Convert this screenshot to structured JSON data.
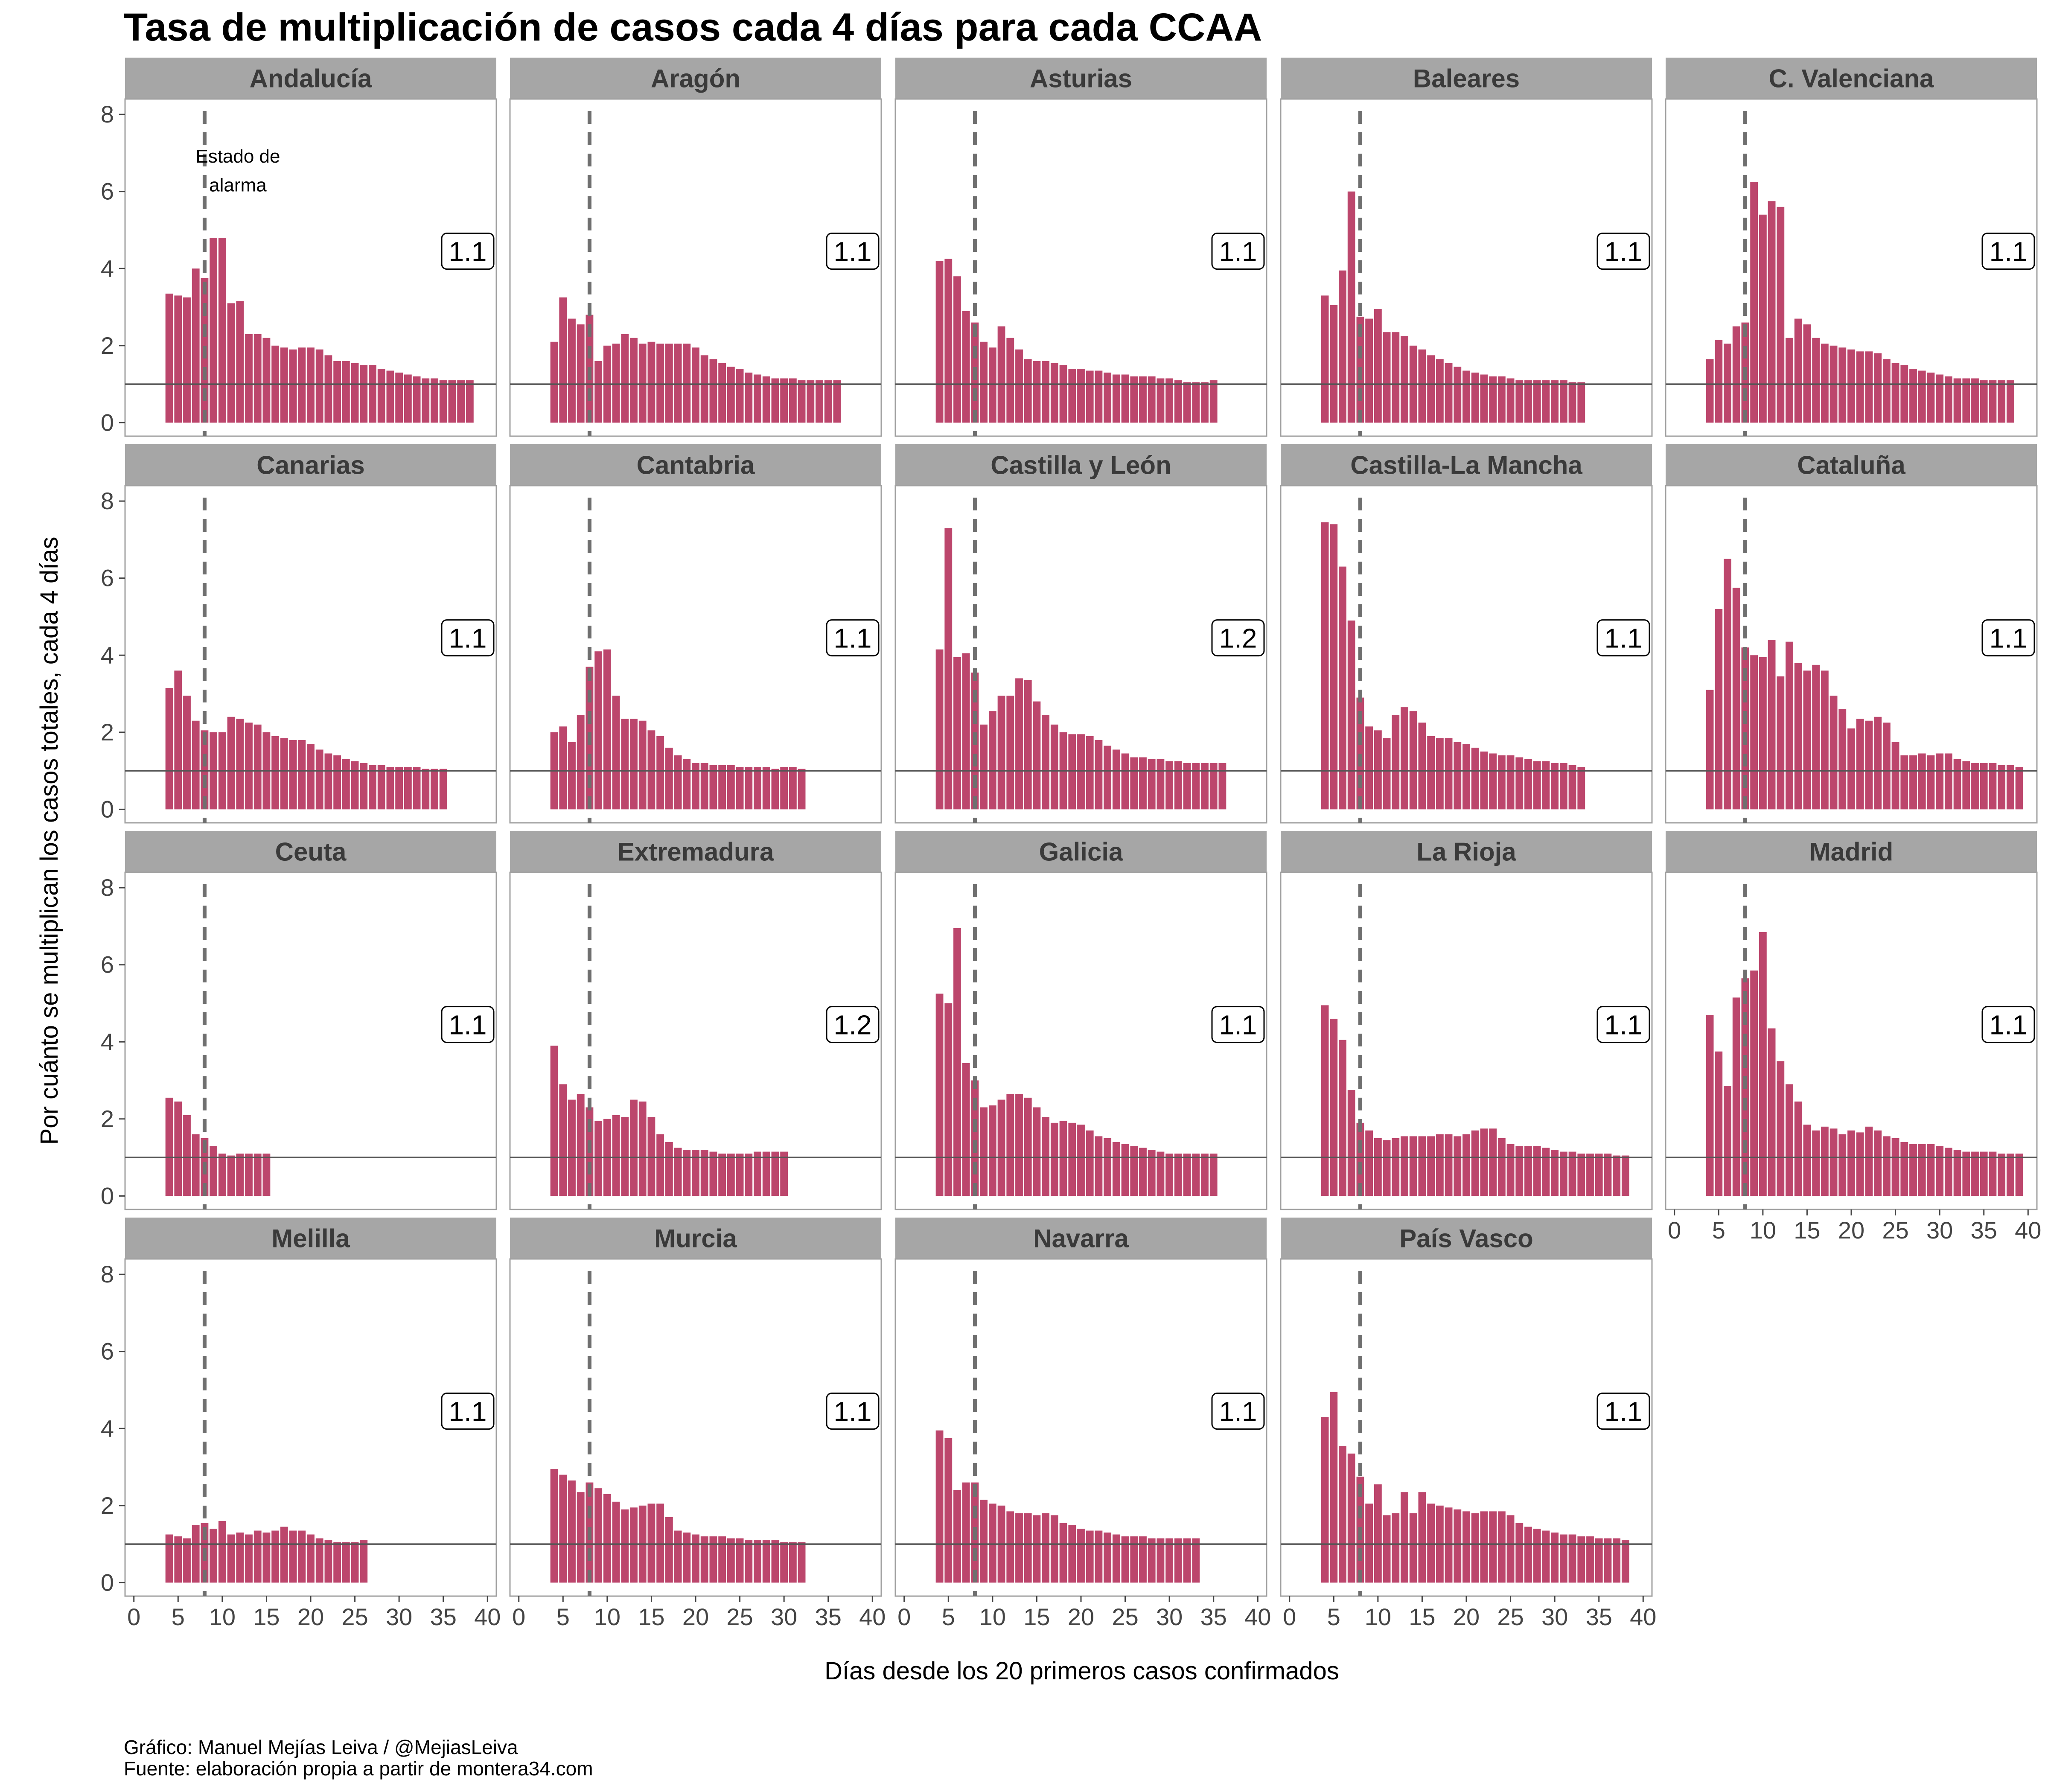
{
  "chart_data": {
    "type": "bar",
    "title": "Tasa de multiplicación de casos cada 4 días para cada CCAA",
    "xlabel": "Días desde los 20 primeros casos confirmados",
    "ylabel": "Por cuánto se multiplican los casos totales, cada 4 días",
    "xlim": [
      -1,
      41
    ],
    "ylim": [
      -0.35,
      8.4
    ],
    "x_ticks": [
      0,
      5,
      10,
      15,
      20,
      25,
      30,
      35,
      40
    ],
    "y_ticks": [
      0,
      2,
      4,
      6,
      8
    ],
    "reference_line_y": 1,
    "alarm_state_x": 8,
    "annotation": "Estado de alarma",
    "bar_color": "#b5325c",
    "strip_color": "#a6a6a6",
    "facets": [
      {
        "region": "Andalucía",
        "label": "1.1",
        "x_start": 4,
        "values": [
          3.35,
          3.3,
          3.25,
          4.0,
          3.75,
          4.8,
          4.8,
          3.1,
          3.15,
          2.3,
          2.3,
          2.2,
          2.0,
          1.95,
          1.9,
          1.95,
          1.95,
          1.9,
          1.75,
          1.6,
          1.6,
          1.55,
          1.5,
          1.5,
          1.4,
          1.35,
          1.3,
          1.25,
          1.2,
          1.15,
          1.15,
          1.1,
          1.1,
          1.1,
          1.1
        ]
      },
      {
        "region": "Aragón",
        "label": "1.1",
        "x_start": 4,
        "values": [
          2.1,
          3.25,
          2.7,
          2.55,
          2.8,
          1.6,
          2.0,
          2.05,
          2.3,
          2.2,
          2.05,
          2.1,
          2.05,
          2.05,
          2.05,
          2.05,
          1.95,
          1.75,
          1.65,
          1.55,
          1.45,
          1.4,
          1.3,
          1.25,
          1.2,
          1.15,
          1.15,
          1.15,
          1.1,
          1.1,
          1.1,
          1.1,
          1.1
        ]
      },
      {
        "region": "Asturias",
        "label": "1.1",
        "x_start": 4,
        "values": [
          4.2,
          4.25,
          3.8,
          2.9,
          2.6,
          2.1,
          1.95,
          2.5,
          2.2,
          1.9,
          1.65,
          1.6,
          1.6,
          1.55,
          1.5,
          1.4,
          1.4,
          1.35,
          1.35,
          1.3,
          1.25,
          1.25,
          1.2,
          1.2,
          1.2,
          1.15,
          1.15,
          1.1,
          1.05,
          1.05,
          1.05,
          1.1
        ]
      },
      {
        "region": "Baleares",
        "label": "1.1",
        "x_start": 4,
        "values": [
          3.3,
          3.05,
          3.95,
          6.0,
          2.75,
          2.7,
          2.95,
          2.35,
          2.35,
          2.25,
          2.0,
          1.9,
          1.75,
          1.65,
          1.55,
          1.45,
          1.35,
          1.3,
          1.25,
          1.2,
          1.2,
          1.15,
          1.1,
          1.1,
          1.1,
          1.1,
          1.1,
          1.1,
          1.05,
          1.05
        ]
      },
      {
        "region": "C. Valenciana",
        "label": "1.1",
        "x_start": 4,
        "values": [
          1.65,
          2.15,
          2.05,
          2.5,
          2.6,
          6.25,
          5.4,
          5.75,
          5.6,
          2.2,
          2.7,
          2.55,
          2.2,
          2.05,
          2.0,
          1.95,
          1.9,
          1.85,
          1.85,
          1.8,
          1.65,
          1.55,
          1.5,
          1.4,
          1.35,
          1.3,
          1.25,
          1.2,
          1.15,
          1.15,
          1.15,
          1.1,
          1.1,
          1.1,
          1.1
        ]
      },
      {
        "region": "Canarias",
        "label": "1.1",
        "x_start": 4,
        "values": [
          3.15,
          3.6,
          2.95,
          2.3,
          2.05,
          2.0,
          2.0,
          2.4,
          2.35,
          2.25,
          2.2,
          2.0,
          1.9,
          1.85,
          1.8,
          1.8,
          1.7,
          1.55,
          1.45,
          1.4,
          1.3,
          1.25,
          1.2,
          1.15,
          1.15,
          1.1,
          1.1,
          1.1,
          1.1,
          1.05,
          1.05,
          1.05
        ]
      },
      {
        "region": "Cantabria",
        "label": "1.1",
        "x_start": 4,
        "values": [
          2.0,
          2.15,
          1.75,
          2.45,
          3.7,
          4.1,
          4.15,
          2.95,
          2.35,
          2.35,
          2.3,
          2.05,
          1.9,
          1.6,
          1.4,
          1.3,
          1.2,
          1.2,
          1.15,
          1.15,
          1.15,
          1.1,
          1.1,
          1.1,
          1.1,
          1.05,
          1.1,
          1.1,
          1.05
        ]
      },
      {
        "region": "Castilla y León",
        "label": "1.2",
        "x_start": 4,
        "values": [
          4.15,
          7.3,
          3.95,
          4.05,
          3.55,
          2.2,
          2.55,
          2.95,
          2.95,
          3.4,
          3.35,
          2.8,
          2.45,
          2.2,
          2.0,
          1.95,
          1.95,
          1.9,
          1.8,
          1.65,
          1.55,
          1.45,
          1.35,
          1.35,
          1.3,
          1.3,
          1.25,
          1.25,
          1.2,
          1.2,
          1.2,
          1.2,
          1.2
        ]
      },
      {
        "region": "Castilla-La Mancha",
        "label": "1.1",
        "x_start": 4,
        "values": [
          7.45,
          7.4,
          6.3,
          4.9,
          2.9,
          2.15,
          2.05,
          1.85,
          2.45,
          2.65,
          2.55,
          2.25,
          1.9,
          1.85,
          1.85,
          1.75,
          1.7,
          1.6,
          1.5,
          1.45,
          1.4,
          1.4,
          1.35,
          1.3,
          1.25,
          1.25,
          1.2,
          1.2,
          1.15,
          1.1
        ]
      },
      {
        "region": "Cataluña",
        "label": "1.1",
        "x_start": 4,
        "values": [
          3.1,
          5.2,
          6.5,
          5.75,
          4.2,
          4.0,
          3.95,
          4.4,
          3.45,
          4.35,
          3.8,
          3.6,
          3.75,
          3.6,
          2.95,
          2.6,
          2.1,
          2.35,
          2.3,
          2.4,
          2.25,
          1.75,
          1.4,
          1.4,
          1.45,
          1.4,
          1.45,
          1.45,
          1.3,
          1.25,
          1.2,
          1.2,
          1.2,
          1.15,
          1.15,
          1.1
        ]
      },
      {
        "region": "Ceuta",
        "label": "1.1",
        "x_start": 4,
        "values": [
          2.55,
          2.45,
          2.1,
          1.6,
          1.5,
          1.3,
          1.1,
          1.05,
          1.1,
          1.1,
          1.1,
          1.1
        ]
      },
      {
        "region": "Extremadura",
        "label": "1.2",
        "x_start": 4,
        "values": [
          3.9,
          2.9,
          2.5,
          2.65,
          2.3,
          1.95,
          2.0,
          2.1,
          2.05,
          2.5,
          2.45,
          2.05,
          1.6,
          1.4,
          1.25,
          1.2,
          1.2,
          1.2,
          1.15,
          1.1,
          1.1,
          1.1,
          1.1,
          1.15,
          1.15,
          1.15,
          1.15
        ]
      },
      {
        "region": "Galicia",
        "label": "1.1",
        "x_start": 4,
        "values": [
          5.25,
          5.0,
          6.95,
          3.45,
          3.0,
          2.3,
          2.35,
          2.5,
          2.65,
          2.65,
          2.55,
          2.3,
          2.05,
          1.9,
          1.95,
          1.9,
          1.85,
          1.7,
          1.55,
          1.5,
          1.4,
          1.35,
          1.3,
          1.25,
          1.2,
          1.15,
          1.1,
          1.1,
          1.1,
          1.1,
          1.1,
          1.1
        ]
      },
      {
        "region": "La Rioja",
        "label": "1.1",
        "x_start": 4,
        "values": [
          4.95,
          4.6,
          4.05,
          2.75,
          1.9,
          1.7,
          1.5,
          1.45,
          1.5,
          1.55,
          1.55,
          1.55,
          1.55,
          1.6,
          1.6,
          1.55,
          1.6,
          1.7,
          1.75,
          1.75,
          1.5,
          1.35,
          1.3,
          1.3,
          1.3,
          1.25,
          1.2,
          1.15,
          1.15,
          1.1,
          1.1,
          1.1,
          1.1,
          1.05,
          1.05
        ]
      },
      {
        "region": "Madrid",
        "label": "1.1",
        "x_start": 4,
        "values": [
          4.7,
          3.75,
          2.85,
          5.15,
          5.65,
          5.85,
          6.85,
          4.35,
          3.5,
          2.9,
          2.45,
          1.85,
          1.7,
          1.8,
          1.75,
          1.6,
          1.7,
          1.65,
          1.8,
          1.7,
          1.55,
          1.5,
          1.4,
          1.35,
          1.35,
          1.35,
          1.3,
          1.25,
          1.2,
          1.15,
          1.15,
          1.15,
          1.15,
          1.1,
          1.1,
          1.1
        ]
      },
      {
        "region": "Melilla",
        "label": "1.1",
        "x_start": 4,
        "values": [
          1.25,
          1.2,
          1.15,
          1.5,
          1.55,
          1.4,
          1.6,
          1.25,
          1.3,
          1.25,
          1.35,
          1.3,
          1.35,
          1.45,
          1.35,
          1.35,
          1.25,
          1.15,
          1.1,
          1.05,
          1.05,
          1.05,
          1.1
        ]
      },
      {
        "region": "Murcia",
        "label": "1.1",
        "x_start": 4,
        "values": [
          2.95,
          2.8,
          2.65,
          2.35,
          2.6,
          2.45,
          2.3,
          2.1,
          1.9,
          1.95,
          2.0,
          2.05,
          2.05,
          1.7,
          1.35,
          1.3,
          1.25,
          1.2,
          1.2,
          1.2,
          1.15,
          1.15,
          1.1,
          1.1,
          1.1,
          1.1,
          1.05,
          1.05,
          1.05
        ]
      },
      {
        "region": "Navarra",
        "label": "1.1",
        "x_start": 4,
        "values": [
          3.95,
          3.75,
          2.4,
          2.6,
          2.6,
          2.15,
          2.05,
          2.0,
          1.85,
          1.8,
          1.8,
          1.75,
          1.8,
          1.75,
          1.55,
          1.5,
          1.4,
          1.35,
          1.35,
          1.3,
          1.25,
          1.2,
          1.2,
          1.2,
          1.15,
          1.15,
          1.15,
          1.15,
          1.15,
          1.15
        ]
      },
      {
        "region": "País Vasco",
        "label": "1.1",
        "x_start": 4,
        "values": [
          4.3,
          4.95,
          3.55,
          3.35,
          2.75,
          2.05,
          2.55,
          1.75,
          1.8,
          2.35,
          1.8,
          2.35,
          2.05,
          2.0,
          1.95,
          1.9,
          1.85,
          1.8,
          1.85,
          1.85,
          1.85,
          1.75,
          1.55,
          1.45,
          1.4,
          1.35,
          1.3,
          1.25,
          1.25,
          1.2,
          1.2,
          1.15,
          1.15,
          1.15,
          1.1
        ]
      }
    ]
  },
  "caption": {
    "line1": "Gráfico: Manuel Mejías Leiva / @MejiasLeiva",
    "line2": "Fuente: elaboración propia a partir de montera34.com"
  }
}
